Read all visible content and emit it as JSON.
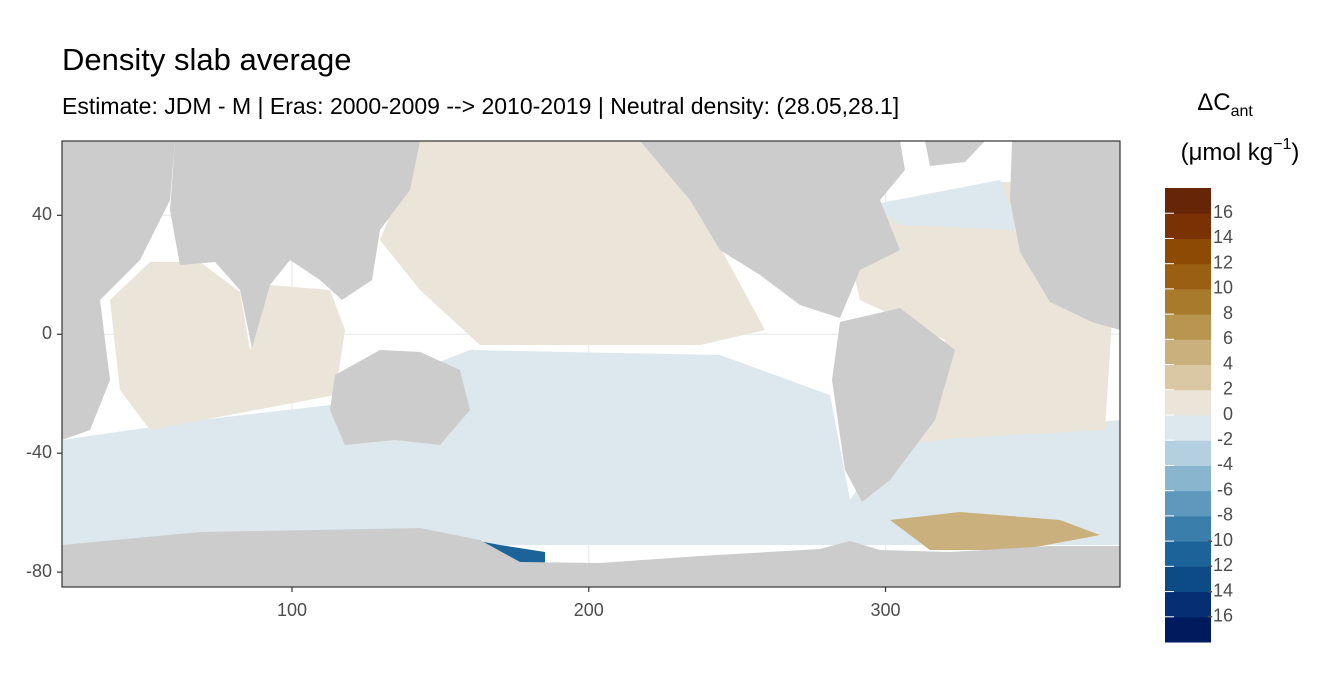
{
  "chart_data": {
    "type": "map",
    "title": "Density slab average",
    "subtitle": "Estimate: JDM - M | Eras: 2000-2009 --> 2010-2019 | Neutral density: (28.05,28.1]",
    "xlim": [
      22.5,
      379
    ],
    "xticks": [
      100,
      200,
      300
    ],
    "ylim": [
      -85,
      65
    ],
    "yticks": [
      -80,
      -40,
      0,
      40
    ],
    "grid": true,
    "legend": {
      "title": "ΔC",
      "title_sub": "ant",
      "unit": "(μmol kg",
      "unit_sup": "−1",
      "unit_close": ")",
      "limits": [
        -18,
        18
      ],
      "breaks": [
        -16,
        -14,
        -12,
        -10,
        -8,
        -6,
        -4,
        -2,
        0,
        2,
        4,
        6,
        8,
        10,
        12,
        14,
        16
      ],
      "colors": [
        "#001a5e",
        "#052f72",
        "#0c4b85",
        "#1b6398",
        "#3a7eac",
        "#5e99bd",
        "#8ab5cf",
        "#b3cfe0",
        "#dde8ee",
        "#ebe4d8",
        "#dac8a4",
        "#c9b07d",
        "#b99650",
        "#a87a2c",
        "#9a5f12",
        "#8c4a05",
        "#7a3205",
        "#662506"
      ]
    }
  }
}
